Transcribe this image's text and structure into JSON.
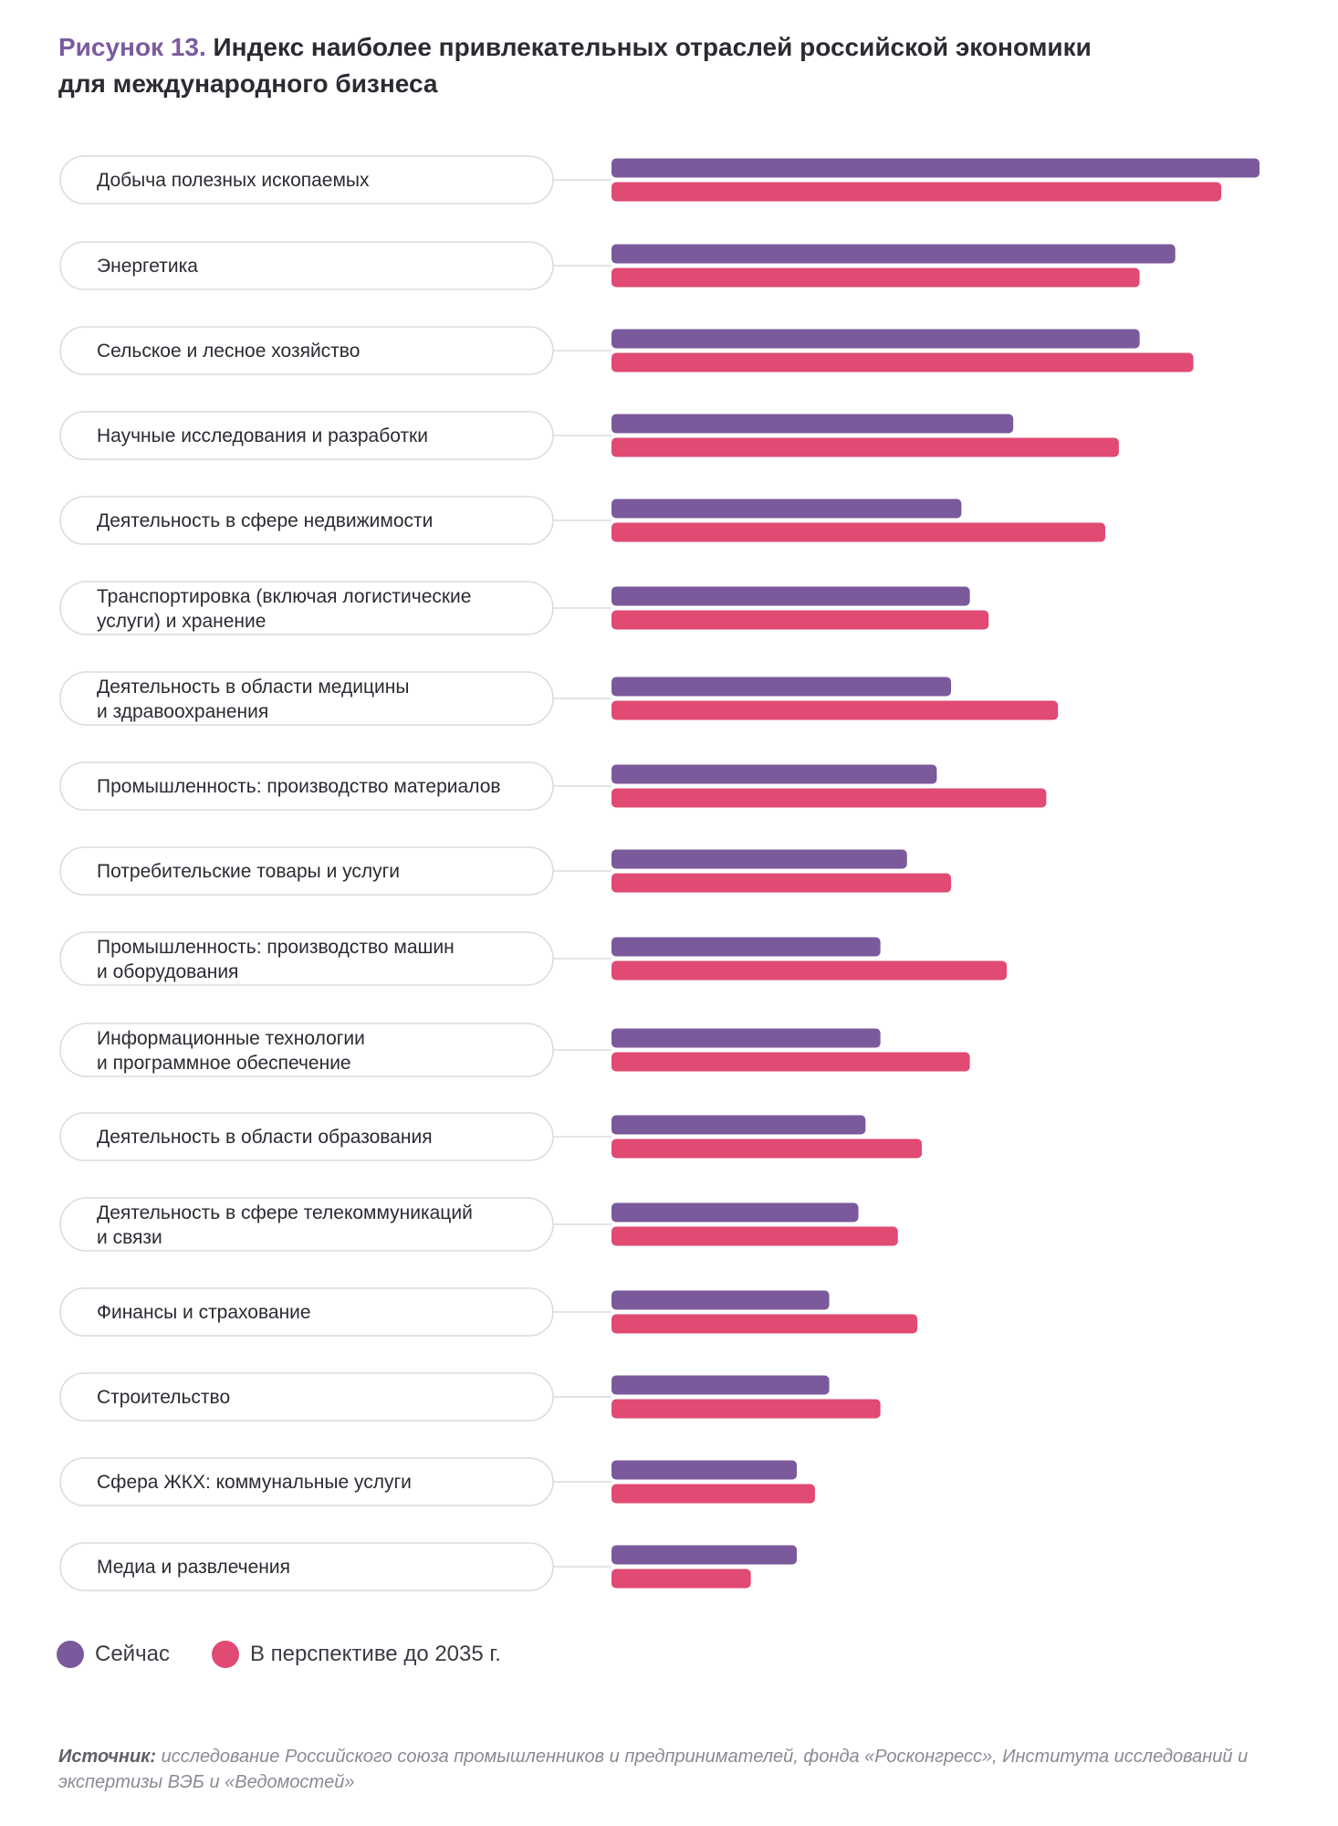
{
  "title": {
    "figure": "Рисунок 13.",
    "text": "Индекс наиболее привлекательных отраслей российской экономики",
    "text2": "для международного бизнеса"
  },
  "colors": {
    "now": "#7b5a9b",
    "future": "#e04a73",
    "title_accent": "#7b5c9f"
  },
  "legend": {
    "now": "Сейчас",
    "future": "В перспективе до 2035 г."
  },
  "source": {
    "label": "Источник:",
    "text": "исследование Российского союза промышленников и предпринимателей, фонда «Росконгресс», Института исследований и экспертизы ВЭБ и «Ведомостей»"
  },
  "chart_data": {
    "type": "bar",
    "orientation": "horizontal",
    "xlim": [
      0,
      100
    ],
    "grid": false,
    "legend_position": "bottom-left",
    "categories": [
      [
        "Добыча полезных ископаемых"
      ],
      [
        "Энергетика"
      ],
      [
        "Сельское и лесное хозяйство"
      ],
      [
        "Научные исследования  и разработки"
      ],
      [
        "Деятельность в сфере недвижимости"
      ],
      [
        "Транспортировка (включая логистические",
        "услуги) и хранение"
      ],
      [
        "Деятельность в области медицины",
        "и здравоохранения"
      ],
      [
        "Промышленность: производство материалов"
      ],
      [
        "Потребительские товары и услуги"
      ],
      [
        "Промышленность: производство машин",
        "и оборудования"
      ],
      [
        "Информационные технологии",
        "и программное обеспечение"
      ],
      [
        "Деятельность в области образования"
      ],
      [
        "Деятельность в сфере телекоммуникаций",
        "и связи"
      ],
      [
        "Финансы и страхование"
      ],
      [
        "Строительство"
      ],
      [
        "Сфера ЖКХ: коммунальные услуги"
      ],
      [
        "Медиа и развлечения"
      ]
    ],
    "series": [
      {
        "name": "Сейчас",
        "values": [
          100,
          87,
          81.5,
          62,
          54,
          55.3,
          52.4,
          50.2,
          45.6,
          41.5,
          41.5,
          39.2,
          38.1,
          33.6,
          33.6,
          28.6,
          28.6
        ]
      },
      {
        "name": "В перспективе до 2035 г.",
        "values": [
          94.1,
          81.5,
          89.8,
          78.3,
          76.2,
          58.2,
          68.9,
          67.1,
          52.4,
          61,
          55.3,
          47.9,
          44.2,
          47.2,
          41.5,
          31.4,
          21.5
        ]
      }
    ]
  }
}
